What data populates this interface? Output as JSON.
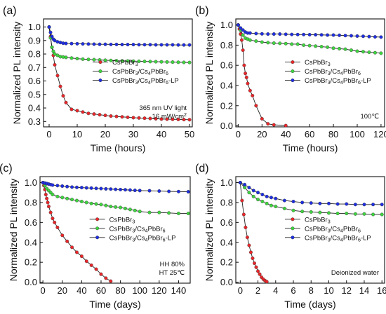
{
  "figure": {
    "background": "#ffffff",
    "marker_colors": {
      "CsPbBr3": "#e8262a",
      "CsPbBr3/Cs4PbBr6": "#3fd43f",
      "CsPbBr3/Cs4PbBr6-LP": "#1f2ee0"
    },
    "line_color": "#222222"
  },
  "chart_data": [
    {
      "type": "line",
      "panel_label": "(a)",
      "xlabel": "Time (hours)",
      "ylabel": "Normalized PL intensity",
      "xlim": [
        -2,
        51
      ],
      "ylim": [
        0.26,
        1.06
      ],
      "xticks": [
        0,
        10,
        20,
        30,
        40,
        50
      ],
      "yticks": [
        0.3,
        0.4,
        0.5,
        0.6,
        0.7,
        0.8,
        0.9,
        1.0
      ],
      "ytick_labels": [
        "0.3",
        "0.4",
        "0.5",
        "0.6",
        "0.7",
        "0.8",
        "0.9",
        "1.0"
      ],
      "legend": {
        "position": "center-right",
        "entries": [
          "CsPbBr₃",
          "CsPbBr₃/Cs₄PbBr₆",
          "CsPbBr₃/Cs₄PbBr₆-LP"
        ]
      },
      "annotation": [
        "365 nm UV light",
        "16 mW/cm²"
      ],
      "series": [
        {
          "key": "CsPbBr3",
          "x": [
            0,
            0.5,
            1,
            1.5,
            2,
            3,
            4,
            5,
            6,
            8,
            10,
            12,
            14,
            16,
            18,
            20,
            22,
            24,
            26,
            28,
            30,
            32,
            34,
            36,
            38,
            40,
            42,
            44,
            46,
            48,
            50
          ],
          "y": [
            1.0,
            0.93,
            0.85,
            0.79,
            0.72,
            0.64,
            0.56,
            0.49,
            0.44,
            0.39,
            0.38,
            0.37,
            0.36,
            0.355,
            0.35,
            0.345,
            0.34,
            0.337,
            0.334,
            0.331,
            0.328,
            0.326,
            0.324,
            0.322,
            0.32,
            0.318,
            0.317,
            0.316,
            0.315,
            0.314,
            0.313
          ]
        },
        {
          "key": "CsPbBr3/Cs4PbBr6",
          "x": [
            0,
            0.5,
            1,
            1.5,
            2,
            3,
            4,
            5,
            6,
            8,
            10,
            12,
            14,
            16,
            18,
            20,
            22,
            24,
            26,
            28,
            30,
            32,
            34,
            36,
            38,
            40,
            42,
            44,
            46,
            48,
            50
          ],
          "y": [
            1.0,
            0.92,
            0.85,
            0.82,
            0.8,
            0.79,
            0.78,
            0.778,
            0.775,
            0.77,
            0.766,
            0.762,
            0.76,
            0.758,
            0.756,
            0.754,
            0.752,
            0.75,
            0.749,
            0.748,
            0.747,
            0.746,
            0.745,
            0.744,
            0.743,
            0.742,
            0.741,
            0.74,
            0.739,
            0.738,
            0.737
          ]
        },
        {
          "key": "CsPbBr3/Cs4PbBr6-LP",
          "x": [
            0,
            0.5,
            1,
            1.5,
            2,
            3,
            4,
            5,
            6,
            8,
            10,
            12,
            14,
            16,
            18,
            20,
            22,
            24,
            26,
            28,
            30,
            32,
            34,
            36,
            38,
            40,
            42,
            44,
            46,
            48,
            50
          ],
          "y": [
            1.0,
            0.96,
            0.93,
            0.91,
            0.9,
            0.89,
            0.885,
            0.88,
            0.878,
            0.877,
            0.876,
            0.875,
            0.874,
            0.873,
            0.872,
            0.872,
            0.871,
            0.871,
            0.87,
            0.87,
            0.87,
            0.869,
            0.869,
            0.869,
            0.868,
            0.868,
            0.868,
            0.868,
            0.867,
            0.867,
            0.867
          ]
        }
      ]
    },
    {
      "type": "line",
      "panel_label": "(b)",
      "xlabel": "Time (hours)",
      "ylabel": "Normalized PL intensity",
      "xlim": [
        -2,
        123
      ],
      "ylim": [
        -0.01,
        1.06
      ],
      "xticks": [
        0,
        20,
        40,
        60,
        80,
        100,
        120
      ],
      "yticks": [
        0.0,
        0.2,
        0.4,
        0.6,
        0.8,
        1.0
      ],
      "ytick_labels": [
        "0.0",
        "0.2",
        "0.4",
        "0.6",
        "0.8",
        "1.0"
      ],
      "legend": {
        "position": "center-right",
        "entries": [
          "CsPbBr₃",
          "CsPbBr₃/Cs₄PbBr₆",
          "CsPbBr₃/Cs₄PbBr₆-LP"
        ]
      },
      "annotation": [
        "100℃"
      ],
      "series": [
        {
          "key": "CsPbBr3",
          "x": [
            0,
            1,
            2,
            3,
            4,
            5,
            6,
            7,
            8,
            10,
            12,
            15,
            20,
            25,
            30,
            40
          ],
          "y": [
            1.0,
            0.96,
            0.91,
            0.85,
            0.75,
            0.6,
            0.52,
            0.48,
            0.42,
            0.35,
            0.3,
            0.2,
            0.07,
            0.02,
            0.01,
            0.003
          ]
        },
        {
          "key": "CsPbBr3/Cs4PbBr6",
          "x": [
            0,
            2,
            4,
            6,
            8,
            10,
            15,
            20,
            25,
            30,
            35,
            40,
            45,
            50,
            55,
            60,
            65,
            70,
            75,
            80,
            85,
            90,
            95,
            100,
            105,
            110,
            115,
            120
          ],
          "y": [
            1.0,
            0.95,
            0.9,
            0.87,
            0.86,
            0.85,
            0.84,
            0.83,
            0.825,
            0.82,
            0.818,
            0.815,
            0.81,
            0.81,
            0.8,
            0.795,
            0.79,
            0.785,
            0.78,
            0.77,
            0.765,
            0.76,
            0.75,
            0.74,
            0.735,
            0.73,
            0.725,
            0.72
          ]
        },
        {
          "key": "CsPbBr3/Cs4PbBr6-LP",
          "x": [
            0,
            2,
            4,
            6,
            8,
            10,
            15,
            20,
            25,
            30,
            35,
            40,
            45,
            50,
            55,
            60,
            65,
            70,
            75,
            80,
            85,
            90,
            95,
            100,
            105,
            110,
            115,
            120
          ],
          "y": [
            1.0,
            0.97,
            0.95,
            0.93,
            0.92,
            0.92,
            0.915,
            0.912,
            0.91,
            0.91,
            0.91,
            0.908,
            0.906,
            0.905,
            0.905,
            0.904,
            0.903,
            0.902,
            0.9,
            0.9,
            0.898,
            0.895,
            0.893,
            0.89,
            0.888,
            0.885,
            0.882,
            0.88
          ]
        }
      ]
    },
    {
      "type": "line",
      "panel_label": "(c)",
      "xlabel": "Time (days)",
      "ylabel": "Normalized PL intensity",
      "xlim": [
        -3,
        152
      ],
      "ylim": [
        -0.01,
        1.06
      ],
      "xticks": [
        0,
        20,
        40,
        60,
        80,
        100,
        120,
        140
      ],
      "yticks": [
        0.0,
        0.2,
        0.4,
        0.6,
        0.8,
        1.0
      ],
      "ytick_labels": [
        "0.0",
        "0.2",
        "0.4",
        "0.6",
        "0.8",
        "1.0"
      ],
      "legend": {
        "position": "center-right",
        "entries": [
          "CsPbBr₃",
          "CsPbBr₃/Cs₄PbBr₆",
          "CsPbBr₃/Cs₄PbBr₆-LP"
        ]
      },
      "annotation": [
        "HH 80%",
        "HT 25℃"
      ],
      "series": [
        {
          "key": "CsPbBr3",
          "x": [
            0,
            1,
            2,
            3,
            4,
            5,
            6,
            8,
            10,
            12,
            15,
            20,
            25,
            30,
            35,
            40,
            45,
            50,
            55,
            60,
            65,
            70
          ],
          "y": [
            1.0,
            0.97,
            0.93,
            0.88,
            0.84,
            0.8,
            0.76,
            0.7,
            0.64,
            0.6,
            0.55,
            0.47,
            0.41,
            0.35,
            0.3,
            0.26,
            0.21,
            0.17,
            0.13,
            0.08,
            0.04,
            0.01
          ]
        },
        {
          "key": "CsPbBr3/Cs4PbBr6",
          "x": [
            0,
            2,
            4,
            6,
            8,
            10,
            15,
            20,
            25,
            30,
            35,
            40,
            45,
            50,
            55,
            60,
            65,
            70,
            75,
            80,
            85,
            90,
            95,
            100,
            110,
            120,
            130,
            140,
            150
          ],
          "y": [
            1.0,
            0.97,
            0.94,
            0.92,
            0.9,
            0.88,
            0.86,
            0.85,
            0.84,
            0.83,
            0.82,
            0.81,
            0.8,
            0.79,
            0.785,
            0.78,
            0.77,
            0.76,
            0.755,
            0.75,
            0.74,
            0.73,
            0.72,
            0.71,
            0.7,
            0.7,
            0.695,
            0.69,
            0.69
          ]
        },
        {
          "key": "CsPbBr3/Cs4PbBr6-LP",
          "x": [
            0,
            2,
            4,
            6,
            8,
            10,
            15,
            20,
            25,
            30,
            35,
            40,
            45,
            50,
            55,
            60,
            65,
            70,
            75,
            80,
            85,
            90,
            95,
            100,
            110,
            120,
            130,
            140,
            150
          ],
          "y": [
            1.0,
            0.995,
            0.99,
            0.985,
            0.98,
            0.975,
            0.97,
            0.965,
            0.96,
            0.955,
            0.952,
            0.95,
            0.947,
            0.945,
            0.942,
            0.94,
            0.937,
            0.935,
            0.932,
            0.93,
            0.928,
            0.925,
            0.922,
            0.92,
            0.918,
            0.915,
            0.912,
            0.91,
            0.908
          ]
        }
      ]
    },
    {
      "type": "line",
      "panel_label": "(d)",
      "xlabel": "Time (days)",
      "ylabel": "Normalized PL intensity",
      "xlim": [
        -0.5,
        16.3
      ],
      "ylim": [
        -0.01,
        1.06
      ],
      "xticks": [
        0,
        2,
        4,
        6,
        8,
        10,
        12,
        14,
        16
      ],
      "yticks": [
        0.0,
        0.2,
        0.4,
        0.6,
        0.8,
        1.0
      ],
      "ytick_labels": [
        "0.0",
        "0.2",
        "0.4",
        "0.6",
        "0.8",
        "1.0"
      ],
      "legend": {
        "position": "center-right",
        "entries": [
          "CsPbBr₃",
          "CsPbBr₃/Cs₄PbBr₆",
          "CsPbBr₃/Cs₄PbBr₆-LP"
        ]
      },
      "annotation": [
        "Deionized water"
      ],
      "series": [
        {
          "key": "CsPbBr3",
          "x": [
            0,
            0.2,
            0.4,
            0.6,
            0.8,
            1.0,
            1.2,
            1.4,
            1.6,
            1.8,
            2.0,
            2.2,
            2.4,
            2.6,
            2.8,
            3.0
          ],
          "y": [
            1.0,
            0.82,
            0.68,
            0.55,
            0.45,
            0.37,
            0.3,
            0.24,
            0.19,
            0.15,
            0.11,
            0.08,
            0.05,
            0.03,
            0.015,
            0.005
          ]
        },
        {
          "key": "CsPbBr3/Cs4PbBr6",
          "x": [
            0,
            0.5,
            1,
            1.5,
            2,
            2.5,
            3,
            3.5,
            4,
            5,
            6,
            7,
            8,
            9,
            10,
            11,
            12,
            13,
            14,
            15,
            16
          ],
          "y": [
            1.0,
            0.95,
            0.9,
            0.86,
            0.83,
            0.81,
            0.79,
            0.77,
            0.76,
            0.74,
            0.72,
            0.71,
            0.705,
            0.7,
            0.695,
            0.69,
            0.69,
            0.685,
            0.685,
            0.68,
            0.68
          ]
        },
        {
          "key": "CsPbBr3/Cs4PbBr6-LP",
          "x": [
            0,
            0.5,
            1,
            1.5,
            2,
            2.5,
            3,
            3.5,
            4,
            5,
            6,
            7,
            8,
            9,
            10,
            11,
            12,
            13,
            14,
            15,
            16
          ],
          "y": [
            1.0,
            0.98,
            0.95,
            0.92,
            0.9,
            0.88,
            0.86,
            0.85,
            0.84,
            0.82,
            0.81,
            0.8,
            0.795,
            0.79,
            0.79,
            0.785,
            0.785,
            0.78,
            0.78,
            0.78,
            0.78
          ]
        }
      ]
    }
  ]
}
